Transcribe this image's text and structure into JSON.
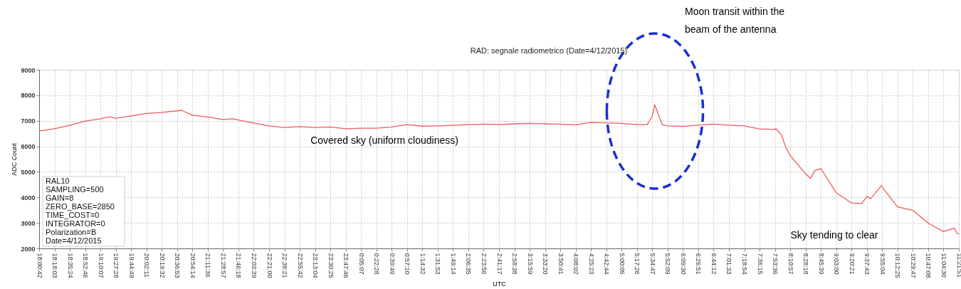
{
  "chart_data": {
    "type": "line",
    "title": "RAD: segnale radiometrico  (Date=4/12/2015)",
    "xlabel": "UTC",
    "ylabel": "ADC Count",
    "x": [
      "2015-12-04T18:00:42",
      "2015-12-04T18:18:03",
      "2015-12-04T18:35:24",
      "2015-12-04T18:52:46",
      "2015-12-04T19:10:07",
      "2015-12-04T19:21:00",
      "2015-12-04T19:27:28",
      "2015-12-04T19:44:49",
      "2015-12-04T20:02:11",
      "2015-12-04T20:19:32",
      "2015-12-04T20:36:53",
      "2015-12-04T20:42:00",
      "2015-12-04T20:54:14",
      "2015-12-04T21:11:36",
      "2015-12-04T21:28:57",
      "2015-12-04T21:40:00",
      "2015-12-04T21:46:18",
      "2015-12-04T22:03:39",
      "2015-12-04T22:21:00",
      "2015-12-04T22:38:21",
      "2015-12-04T22:55:42",
      "2015-12-04T23:13:04",
      "2015-12-04T23:30:25",
      "2015-12-04T23:47:46",
      "2015-12-05T00:05:07",
      "2015-12-05T00:22:28",
      "2015-12-05T00:39:49",
      "2015-12-05T00:57:10",
      "2015-12-05T01:14:32",
      "2015-12-05T01:31:53",
      "2015-12-05T01:49:14",
      "2015-12-05T02:06:35",
      "2015-12-05T02:23:56",
      "2015-12-05T02:41:17",
      "2015-12-05T02:58:38",
      "2015-12-05T03:15:59",
      "2015-12-05T03:33:20",
      "2015-12-05T03:50:41",
      "2015-12-05T04:08:02",
      "2015-12-05T04:25:23",
      "2015-12-05T04:42:44",
      "2015-12-05T05:00:05",
      "2015-12-05T05:17:26",
      "2015-12-05T05:29:00",
      "2015-12-05T05:34:47",
      "2015-12-05T05:37:30",
      "2015-12-05T05:46:00",
      "2015-12-05T05:52:09",
      "2015-12-05T06:09:30",
      "2015-12-05T06:26:51",
      "2015-12-05T06:44:12",
      "2015-12-05T07:01:33",
      "2015-12-05T07:18:54",
      "2015-12-05T07:36:15",
      "2015-12-05T07:53:36",
      "2015-12-05T07:54:30",
      "2015-12-05T08:01:00",
      "2015-12-05T08:06:00",
      "2015-12-05T08:10:57",
      "2015-12-05T08:28:18",
      "2015-12-05T08:34:00",
      "2015-12-05T08:39:00",
      "2015-12-05T08:45:39",
      "2015-12-05T09:03:00",
      "2015-12-05T09:20:21",
      "2015-12-05T09:32:00",
      "2015-12-05T09:37:43",
      "2015-12-05T09:42:00",
      "2015-12-05T09:54:00",
      "2015-12-05T09:55:04",
      "2015-12-05T10:12:25",
      "2015-12-05T10:29:47",
      "2015-12-05T10:47:08",
      "2015-12-05T11:04:30",
      "2015-12-05T11:16:30",
      "2015-12-05T11:19:30",
      "2015-12-05T11:21:51"
    ],
    "series": [
      {
        "color": "#f05a5a",
        "values": [
          6600,
          6690,
          6820,
          6990,
          7080,
          7160,
          7100,
          7190,
          7290,
          7330,
          7390,
          7410,
          7220,
          7150,
          7050,
          7080,
          7030,
          6910,
          6800,
          6740,
          6770,
          6740,
          6760,
          6690,
          6710,
          6710,
          6760,
          6850,
          6790,
          6800,
          6820,
          6850,
          6870,
          6850,
          6880,
          6900,
          6880,
          6870,
          6840,
          6940,
          6920,
          6900,
          6850,
          6850,
          7180,
          7630,
          6850,
          6800,
          6780,
          6830,
          6870,
          6830,
          6800,
          6680,
          6660,
          6700,
          6450,
          5950,
          5640,
          4920,
          4750,
          5060,
          5130,
          4180,
          3780,
          3760,
          4040,
          3950,
          4460,
          4400,
          3630,
          3490,
          2990,
          2660,
          2800,
          2600,
          2570
        ]
      }
    ],
    "xlim": [
      "2015-12-04T18:00:42",
      "2015-12-05T11:21:51"
    ],
    "xticks": [
      {
        "value": "2015-12-04T18:00:42",
        "label": "18:00:42"
      },
      {
        "value": "2015-12-04T18:18:03",
        "label": "18:18:03"
      },
      {
        "value": "2015-12-04T18:35:24",
        "label": "18:35:24"
      },
      {
        "value": "2015-12-04T18:52:46",
        "label": "18:52:46"
      },
      {
        "value": "2015-12-04T19:10:07",
        "label": "19:10:07"
      },
      {
        "value": "2015-12-04T19:27:28",
        "label": "19:27:28"
      },
      {
        "value": "2015-12-04T19:44:49",
        "label": "19:44:49"
      },
      {
        "value": "2015-12-04T20:02:11",
        "label": "20:02:11"
      },
      {
        "value": "2015-12-04T20:19:32",
        "label": "20:19:32"
      },
      {
        "value": "2015-12-04T20:36:53",
        "label": "20:36:53"
      },
      {
        "value": "2015-12-04T20:54:14",
        "label": "20:54:14"
      },
      {
        "value": "2015-12-04T21:11:36",
        "label": "21:11:36"
      },
      {
        "value": "2015-12-04T21:28:57",
        "label": "21:28:57"
      },
      {
        "value": "2015-12-04T21:46:18",
        "label": "21:46:18"
      },
      {
        "value": "2015-12-04T22:03:39",
        "label": "22:03:39"
      },
      {
        "value": "2015-12-04T22:21:00",
        "label": "22:21:00"
      },
      {
        "value": "2015-12-04T22:38:21",
        "label": "22:38:21"
      },
      {
        "value": "2015-12-04T22:55:42",
        "label": "22:55:42"
      },
      {
        "value": "2015-12-04T23:13:04",
        "label": "23:13:04"
      },
      {
        "value": "2015-12-04T23:30:25",
        "label": "23:30:25"
      },
      {
        "value": "2015-12-04T23:47:46",
        "label": "23:47:46"
      },
      {
        "value": "2015-12-05T00:05:07",
        "label": "0:05:07"
      },
      {
        "value": "2015-12-05T00:22:28",
        "label": "0:22:28"
      },
      {
        "value": "2015-12-05T00:39:49",
        "label": "0:39:49"
      },
      {
        "value": "2015-12-05T00:57:10",
        "label": "0:57:10"
      },
      {
        "value": "2015-12-05T01:14:32",
        "label": "1:14:32"
      },
      {
        "value": "2015-12-05T01:31:53",
        "label": "1:31:53"
      },
      {
        "value": "2015-12-05T01:49:14",
        "label": "1:49:14"
      },
      {
        "value": "2015-12-05T02:06:35",
        "label": "2:06:35"
      },
      {
        "value": "2015-12-05T02:23:56",
        "label": "2:23:56"
      },
      {
        "value": "2015-12-05T02:41:17",
        "label": "2:41:17"
      },
      {
        "value": "2015-12-05T02:58:38",
        "label": "2:58:38"
      },
      {
        "value": "2015-12-05T03:15:59",
        "label": "3:15:59"
      },
      {
        "value": "2015-12-05T03:33:20",
        "label": "3:33:20"
      },
      {
        "value": "2015-12-05T03:50:41",
        "label": "3:50:41"
      },
      {
        "value": "2015-12-05T04:08:02",
        "label": "4:08:02"
      },
      {
        "value": "2015-12-05T04:25:23",
        "label": "4:25:23"
      },
      {
        "value": "2015-12-05T04:42:44",
        "label": "4:42:44"
      },
      {
        "value": "2015-12-05T05:00:05",
        "label": "5:00:05"
      },
      {
        "value": "2015-12-05T05:17:26",
        "label": "5:17:26"
      },
      {
        "value": "2015-12-05T05:34:47",
        "label": "5:34:47"
      },
      {
        "value": "2015-12-05T05:52:09",
        "label": "5:52:09"
      },
      {
        "value": "2015-12-05T06:09:30",
        "label": "6:09:30"
      },
      {
        "value": "2015-12-05T06:26:51",
        "label": "6:26:51"
      },
      {
        "value": "2015-12-05T06:44:12",
        "label": "6:44:12"
      },
      {
        "value": "2015-12-05T07:01:33",
        "label": "7:01:33"
      },
      {
        "value": "2015-12-05T07:18:54",
        "label": "7:18:54"
      },
      {
        "value": "2015-12-05T07:36:15",
        "label": "7:36:15"
      },
      {
        "value": "2015-12-05T07:53:36",
        "label": "7:53:36"
      },
      {
        "value": "2015-12-05T08:10:57",
        "label": "8:10:57"
      },
      {
        "value": "2015-12-05T08:28:18",
        "label": "8:28:18"
      },
      {
        "value": "2015-12-05T08:45:39",
        "label": "8:45:39"
      },
      {
        "value": "2015-12-05T09:03:00",
        "label": "9:03:00"
      },
      {
        "value": "2015-12-05T09:20:21",
        "label": "9:20:21"
      },
      {
        "value": "2015-12-05T09:37:43",
        "label": "9:37:43"
      },
      {
        "value": "2015-12-05T09:55:04",
        "label": "9:55:04"
      },
      {
        "value": "2015-12-05T10:12:25",
        "label": "10:12:25"
      },
      {
        "value": "2015-12-05T10:29:47",
        "label": "10:29:47"
      },
      {
        "value": "2015-12-05T10:47:08",
        "label": "10:47:08"
      },
      {
        "value": "2015-12-05T11:04:30",
        "label": "11:04:30"
      },
      {
        "value": "2015-12-05T11:21:51",
        "label": "11:21:51"
      }
    ],
    "ylim": [
      2000,
      9000
    ],
    "yticks": [
      2000,
      3000,
      4000,
      5000,
      6000,
      7000,
      8000,
      9000
    ],
    "grid": true,
    "annotations": [
      "Moon transit within the beam of the antenna",
      "Covered sky (uniform cloudiness)",
      "Sky tending to clear",
      "RAL10",
      "SAMPLING=500",
      "GAIN=8",
      "ZERO_BASE=2850",
      "TIME_COST=0",
      "INTEGRATOR=0",
      "Polarization=B",
      "Date=4/12/2015"
    ]
  }
}
